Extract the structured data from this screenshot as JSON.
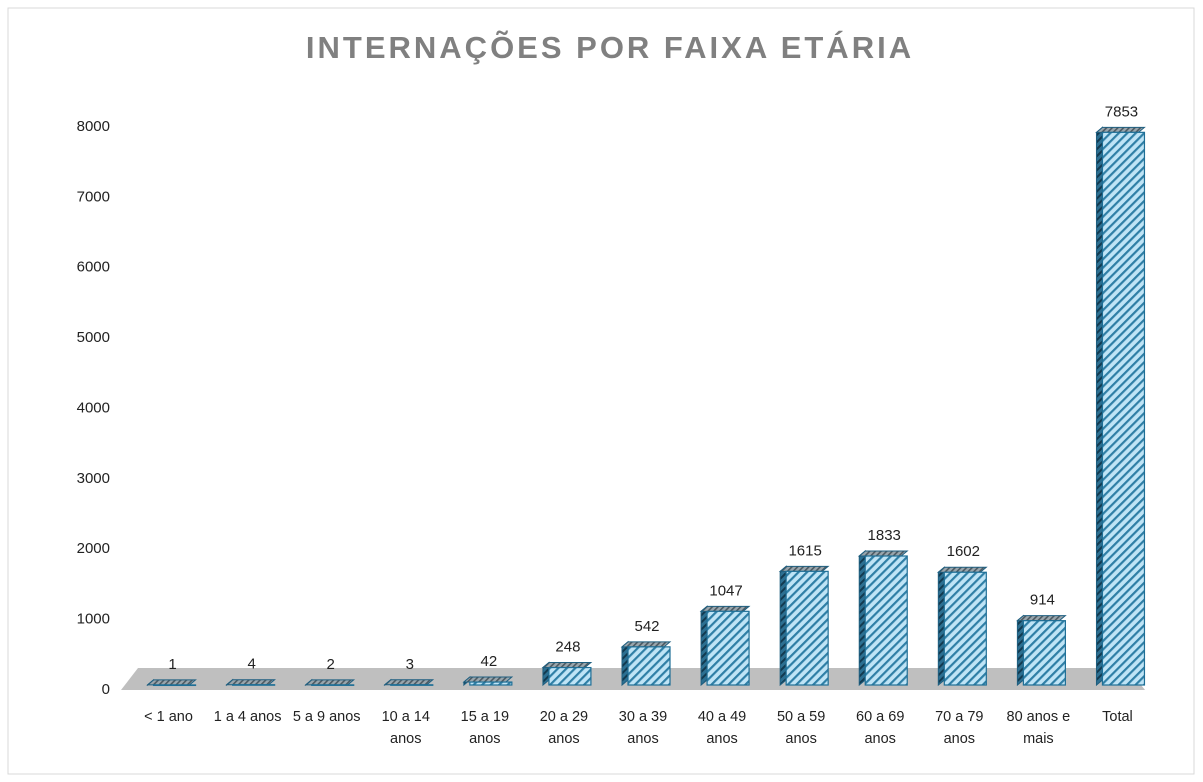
{
  "chart_data": {
    "type": "bar",
    "title": "INTERNAÇÕES POR FAIXA ETÁRIA",
    "categories": [
      "< 1 ano",
      "1 a 4 anos",
      "5 a 9 anos",
      "10 a 14 anos",
      "15 a 19 anos",
      "20 a 29 anos",
      "30 a 39 anos",
      "40 a 49 anos",
      "50 a 59 anos",
      "60 a 69 anos",
      "70 a 79 anos",
      "80 anos e mais",
      "Total"
    ],
    "values": [
      1,
      4,
      2,
      3,
      42,
      248,
      542,
      1047,
      1615,
      1833,
      1602,
      914,
      7853
    ],
    "color": "#bfe4f6",
    "ylim": [
      0,
      8000
    ],
    "yticks": [
      0,
      1000,
      2000,
      3000,
      4000,
      5000,
      6000,
      7000,
      8000
    ],
    "grid": false
  }
}
